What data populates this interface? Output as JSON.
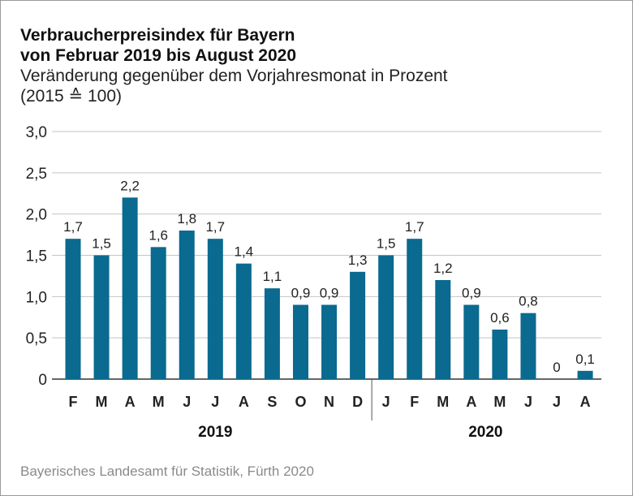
{
  "title": {
    "line1": "Verbraucherpreisindex für Bayern",
    "line2": "von Februar 2019 bis August 2020"
  },
  "subtitle": {
    "line1": "Veränderung gegenüber dem Vorjahresmonat in Prozent",
    "line2": "(2015 ≙ 100)"
  },
  "footer": "Bayerisches Landesamt für Statistik, Fürth 2020",
  "chart_data": {
    "type": "bar",
    "title": "Verbraucherpreisindex für Bayern von Februar 2019 bis August 2020",
    "xlabel": "",
    "ylabel": "Veränderung gegenüber dem Vorjahresmonat in Prozent",
    "ylim": [
      0,
      3.0
    ],
    "yticks": [
      0,
      0.5,
      1.0,
      1.5,
      2.0,
      2.5,
      3.0
    ],
    "ytick_labels": [
      "0",
      "0,5",
      "1,0",
      "1,5",
      "2,0",
      "2,5",
      "3,0"
    ],
    "categories": [
      "F",
      "M",
      "A",
      "M",
      "J",
      "J",
      "A",
      "S",
      "O",
      "N",
      "D",
      "J",
      "F",
      "M",
      "A",
      "M",
      "J",
      "J",
      "A"
    ],
    "values": [
      1.7,
      1.5,
      2.2,
      1.6,
      1.8,
      1.7,
      1.4,
      1.1,
      0.9,
      0.9,
      1.3,
      1.5,
      1.7,
      1.2,
      0.9,
      0.6,
      0.8,
      0,
      0.1
    ],
    "value_labels": [
      "1,7",
      "1,5",
      "2,2",
      "1,6",
      "1,8",
      "1,7",
      "1,4",
      "1,1",
      "0,9",
      "0,9",
      "1,3",
      "1,5",
      "1,7",
      "1,2",
      "0,9",
      "0,6",
      "0,8",
      "0",
      "0,1"
    ],
    "year_groups": [
      {
        "label": "2019",
        "start": 0,
        "end": 10
      },
      {
        "label": "2020",
        "start": 11,
        "end": 18
      }
    ],
    "bar_color": "#0a6a8f",
    "grid": true
  }
}
